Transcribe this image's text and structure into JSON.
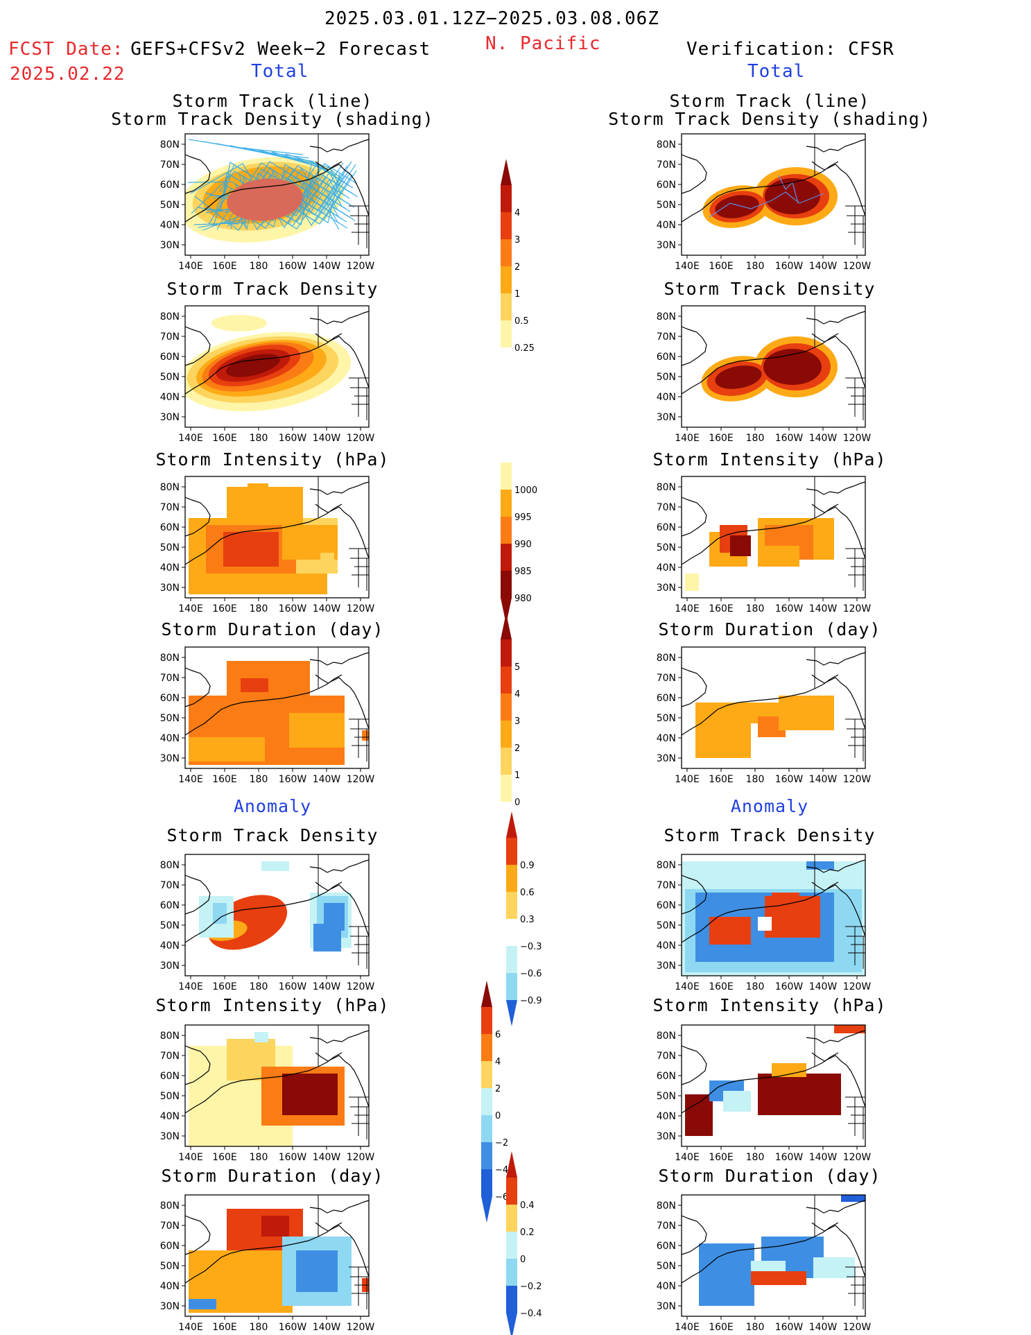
{
  "header": {
    "date_range": "2025.03.01.12Z−2025.03.08.06Z",
    "region": "N. Pacific",
    "fcst_label": "FCST Date:",
    "fcst_model": "GEFS+CFSv2 Week−2 Forecast",
    "fcst_date": "2025.02.22",
    "verification": "Verification: CFSR",
    "total_left": "Total",
    "total_right": "Total"
  },
  "sections": {
    "anomaly_left": "Anomaly",
    "anomaly_right": "Anomaly"
  },
  "panel_titles": {
    "track_line": "Storm Track (line)",
    "track_density_shading": "Storm Track Density (shading)",
    "track_density": "Storm Track Density",
    "intensity": "Storm Intensity (hPa)",
    "duration": "Storm Duration (day)"
  },
  "axes": {
    "lat_labels": [
      "80N",
      "70N",
      "60N",
      "50N",
      "40N",
      "30N"
    ],
    "lon_labels": [
      "140E",
      "160E",
      "180",
      "160W",
      "140W",
      "120W"
    ]
  },
  "colorbars": {
    "density": [
      "4",
      "3",
      "2",
      "1",
      "0.5",
      "0.25"
    ],
    "intensity": [
      "1000",
      "995",
      "990",
      "985",
      "980"
    ],
    "duration": [
      "5",
      "4",
      "3",
      "2",
      "1",
      "0"
    ],
    "density_anom": [
      "0.9",
      "0.6",
      "0.3",
      "−0.3",
      "−0.6",
      "−0.9"
    ],
    "intensity_anom": [
      "6",
      "4",
      "2",
      "0",
      "−2",
      "−4",
      "−6"
    ],
    "duration_anom": [
      "0.4",
      "0.2",
      "0",
      "−0.2",
      "−0.4"
    ]
  },
  "colors": {
    "warm": [
      "#fff5a8",
      "#fdd45e",
      "#fdaa16",
      "#fb7c14",
      "#e83f10",
      "#c01a0a",
      "#8a0a05"
    ],
    "cool": [
      "#c5f2f5",
      "#8fd8f2",
      "#3e8fe3",
      "#1f5fd8"
    ],
    "track_line": "#2da8e8",
    "heading_red": "#e8282d",
    "heading_blue": "#2040e0"
  }
}
